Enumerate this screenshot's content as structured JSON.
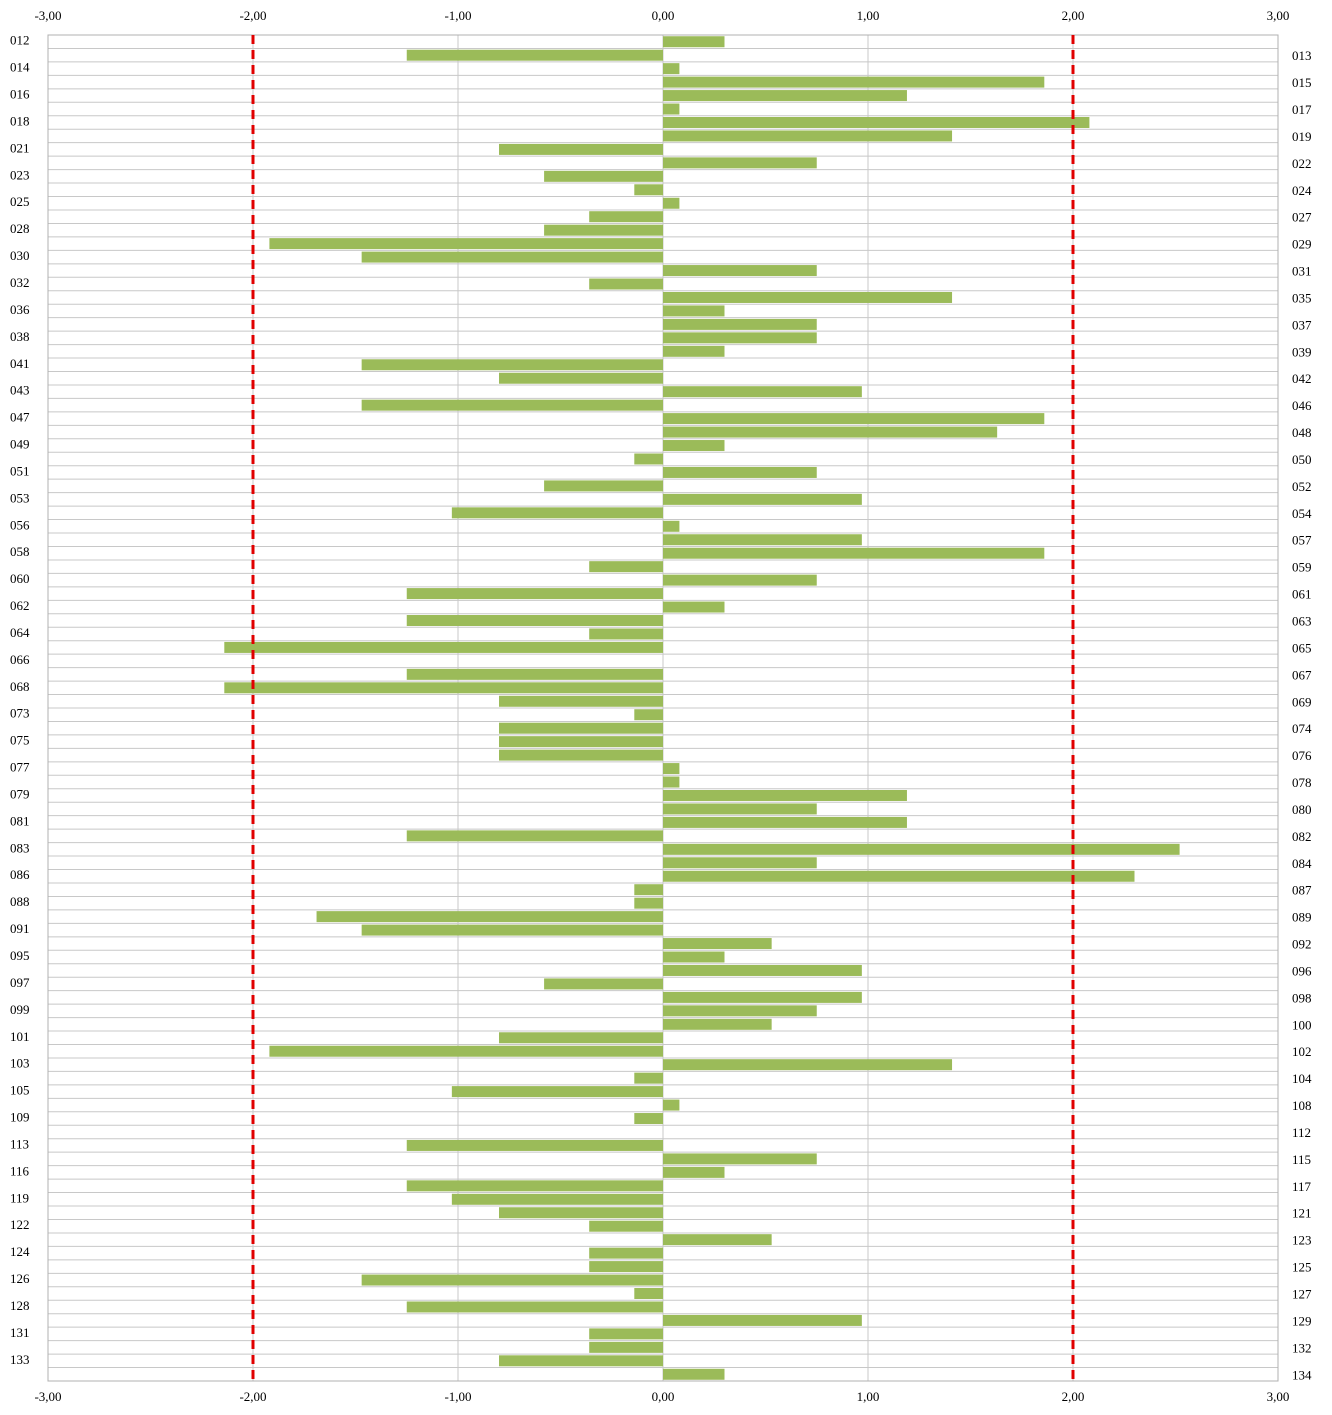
{
  "chart_data": {
    "type": "hbar",
    "categories": [
      "012",
      "013",
      "014",
      "015",
      "016",
      "017",
      "018",
      "019",
      "021",
      "022",
      "023",
      "024",
      "025",
      "027",
      "028",
      "029",
      "030",
      "031",
      "032",
      "035",
      "036",
      "037",
      "038",
      "039",
      "041",
      "042",
      "043",
      "046",
      "047",
      "048",
      "049",
      "050",
      "051",
      "052",
      "053",
      "054",
      "056",
      "057",
      "058",
      "059",
      "060",
      "061",
      "062",
      "063",
      "064",
      "065",
      "066",
      "067",
      "068",
      "069",
      "073",
      "074",
      "075",
      "076",
      "077",
      "078",
      "079",
      "080",
      "081",
      "082",
      "083",
      "084",
      "086",
      "087",
      "088",
      "089",
      "091",
      "092",
      "095",
      "096",
      "097",
      "098",
      "099",
      "100",
      "101",
      "102",
      "103",
      "104",
      "105",
      "108",
      "109",
      "112",
      "113",
      "115",
      "116",
      "117",
      "119",
      "121",
      "122",
      "123",
      "124",
      "125",
      "126",
      "127",
      "128",
      "129",
      "131",
      "132",
      "133",
      "134"
    ],
    "values": [
      0.3,
      -1.25,
      0.08,
      1.86,
      1.19,
      0.08,
      2.08,
      1.41,
      -0.8,
      0.75,
      -0.58,
      -0.14,
      0.08,
      -0.36,
      -0.58,
      -1.92,
      -1.47,
      0.75,
      -0.36,
      1.41,
      0.3,
      0.75,
      0.75,
      0.3,
      -1.47,
      -0.8,
      0.97,
      -1.47,
      1.86,
      1.63,
      0.3,
      -0.14,
      0.75,
      -0.58,
      0.97,
      -1.03,
      0.08,
      0.97,
      1.86,
      -0.36,
      0.75,
      -1.25,
      0.3,
      -1.25,
      -0.36,
      -2.14,
      0,
      -1.25,
      -2.14,
      -0.8,
      -0.14,
      -0.8,
      -0.8,
      -0.8,
      0.08,
      0.08,
      1.19,
      0.75,
      1.19,
      -1.25,
      2.52,
      0.75,
      2.3,
      -0.14,
      -0.14,
      -1.69,
      -1.47,
      0.53,
      0.3,
      0.97,
      -0.58,
      0.97,
      0.75,
      0.53,
      -0.8,
      -1.92,
      1.41,
      -0.14,
      -1.03,
      0.08,
      -0.14,
      0,
      -1.25,
      0.75,
      0.3,
      -1.25,
      -1.03,
      -0.8,
      -0.36,
      0.53,
      -0.36,
      -0.36,
      -1.47,
      -0.14,
      -1.25,
      0.97,
      -0.36,
      -0.36,
      -0.8,
      0.3
    ],
    "color": "#9bbb59",
    "xlim": [
      -3,
      3
    ],
    "xticks": [
      {
        "value": -3,
        "label": "-3,00"
      },
      {
        "value": -2,
        "label": "-2,00"
      },
      {
        "value": -1,
        "label": "-1,00"
      },
      {
        "value": 0,
        "label": "0,00"
      },
      {
        "value": 1,
        "label": "1,00"
      },
      {
        "value": 2,
        "label": "2,00"
      },
      {
        "value": 3,
        "label": "3,00"
      }
    ],
    "reference_lines": [
      -2,
      2
    ],
    "reference_color": "#e00000",
    "grid": true
  }
}
